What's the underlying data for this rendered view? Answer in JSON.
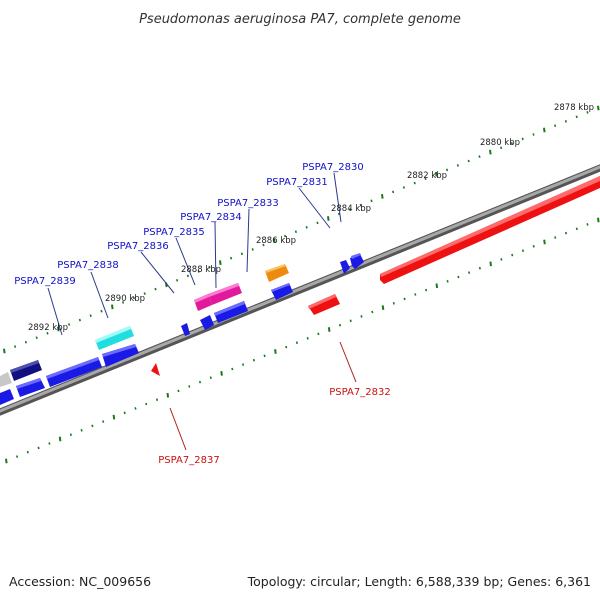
{
  "title": "Pseudomonas aeruginosa PA7, complete genome",
  "accession_text": "Accession: NC_009656",
  "summary_text": "Topology: circular; Length: 6,588,339 bp; Genes: 6,361",
  "colors": {
    "backbone": "#777777",
    "ticks": "#1a7a1a",
    "forward_label": "#1010c8",
    "reverse_label": "#cc1111",
    "blue": "#1a1ae6",
    "navy": "#101080",
    "red": "#ee1111",
    "cyan": "#22dddd",
    "magenta": "#e01a9a",
    "orange": "#ee8a10",
    "gray": "#c8c8c8"
  },
  "scale_labels": [
    {
      "name": "scale-label-2878",
      "text": "2878 kbp"
    },
    {
      "name": "scale-label-2880",
      "text": "2880 kbp"
    },
    {
      "name": "scale-label-2882",
      "text": "2882 kbp"
    },
    {
      "name": "scale-label-2884",
      "text": "2884 kbp"
    },
    {
      "name": "scale-label-2886",
      "text": "2886 kbp"
    },
    {
      "name": "scale-label-2888",
      "text": "2888 kbp"
    },
    {
      "name": "scale-label-2890",
      "text": "2890 kbp"
    },
    {
      "name": "scale-label-2892",
      "text": "2892 kbp"
    }
  ],
  "gene_labels": [
    {
      "name": "gene-label-pspa7-2830",
      "text": "PSPA7_2830",
      "strand": "forward"
    },
    {
      "name": "gene-label-pspa7-2831",
      "text": "PSPA7_2831",
      "strand": "forward"
    },
    {
      "name": "gene-label-pspa7-2833",
      "text": "PSPA7_2833",
      "strand": "forward"
    },
    {
      "name": "gene-label-pspa7-2834",
      "text": "PSPA7_2834",
      "strand": "forward"
    },
    {
      "name": "gene-label-pspa7-2835",
      "text": "PSPA7_2835",
      "strand": "forward"
    },
    {
      "name": "gene-label-pspa7-2836",
      "text": "PSPA7_2836",
      "strand": "forward"
    },
    {
      "name": "gene-label-pspa7-2838",
      "text": "PSPA7_2838",
      "strand": "forward"
    },
    {
      "name": "gene-label-pspa7-2839",
      "text": "PSPA7_2839",
      "strand": "forward"
    },
    {
      "name": "gene-label-pspa7-2832",
      "text": "PSPA7_2832",
      "strand": "reverse"
    },
    {
      "name": "gene-label-pspa7-2837",
      "text": "PSPA7_2837",
      "strand": "reverse"
    }
  ]
}
